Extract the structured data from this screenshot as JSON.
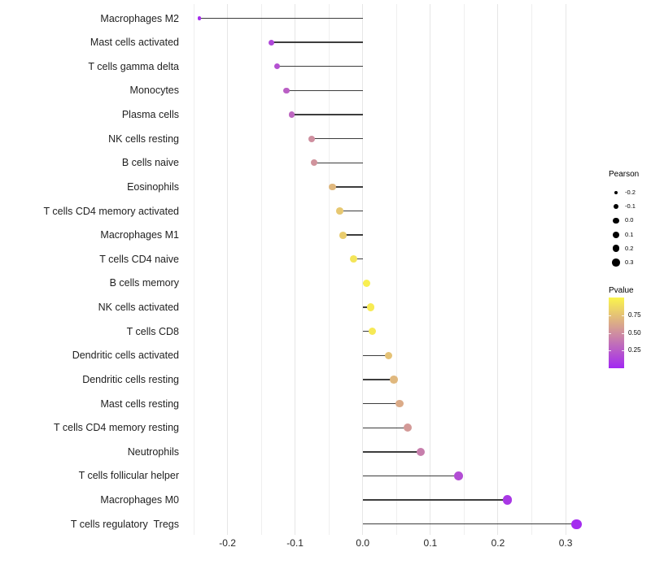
{
  "chart_data": {
    "type": "lollipop",
    "title": "",
    "xlabel": "",
    "ylabel": "",
    "xlim": [
      -0.25,
      0.33
    ],
    "grid_step": 0.05,
    "grid_on": true,
    "x_ticks": [
      -0.2,
      -0.1,
      0.0,
      0.1,
      0.2,
      0.3
    ],
    "x_tick_labels": [
      "-0.2",
      "-0.1",
      "0.0",
      "0.1",
      "0.2",
      "0.3"
    ],
    "rows": [
      {
        "label": "Macrophages M2",
        "pearson": -0.242,
        "pvalue": 0.03
      },
      {
        "label": "Mast cells activated",
        "pearson": -0.135,
        "pvalue": 0.15
      },
      {
        "label": "T cells gamma delta",
        "pearson": -0.127,
        "pvalue": 0.2
      },
      {
        "label": "Monocytes",
        "pearson": -0.113,
        "pvalue": 0.27
      },
      {
        "label": "Plasma cells",
        "pearson": -0.105,
        "pvalue": 0.3
      },
      {
        "label": "NK cells resting",
        "pearson": -0.076,
        "pvalue": 0.5
      },
      {
        "label": "B cells naive",
        "pearson": -0.072,
        "pvalue": 0.52
      },
      {
        "label": "Eosinophils",
        "pearson": -0.045,
        "pvalue": 0.7
      },
      {
        "label": "T cells CD4 memory activated",
        "pearson": -0.034,
        "pvalue": 0.78
      },
      {
        "label": "Macrophages M1",
        "pearson": -0.029,
        "pvalue": 0.8
      },
      {
        "label": "T cells CD4 naive",
        "pearson": -0.014,
        "pvalue": 0.92
      },
      {
        "label": "B cells memory",
        "pearson": 0.006,
        "pvalue": 0.97
      },
      {
        "label": "NK cells activated",
        "pearson": 0.012,
        "pvalue": 0.95
      },
      {
        "label": "T cells CD8",
        "pearson": 0.014,
        "pvalue": 0.94
      },
      {
        "label": "Dendritic cells activated",
        "pearson": 0.038,
        "pvalue": 0.75
      },
      {
        "label": "Dendritic cells resting",
        "pearson": 0.046,
        "pvalue": 0.7
      },
      {
        "label": "Mast cells resting",
        "pearson": 0.054,
        "pvalue": 0.64
      },
      {
        "label": "T cells CD4 memory resting",
        "pearson": 0.067,
        "pvalue": 0.55
      },
      {
        "label": "Neutrophils",
        "pearson": 0.086,
        "pvalue": 0.42
      },
      {
        "label": "T cells follicular helper",
        "pearson": 0.142,
        "pvalue": 0.18
      },
      {
        "label": "Macrophages M0",
        "pearson": 0.214,
        "pvalue": 0.08
      },
      {
        "label": "T cells regulatory  Tregs",
        "pearson": 0.316,
        "pvalue": 0.02
      }
    ],
    "legend_size": {
      "title": "Pearson",
      "values": [
        -0.2,
        -0.1,
        0.0,
        0.1,
        0.2,
        0.3
      ],
      "labels": [
        "-0.2",
        "-0.1",
        "0.0",
        "0.1",
        "0.2",
        "0.3"
      ],
      "position": "right"
    },
    "legend_color": {
      "title": "Pvalue",
      "range": [
        0,
        1
      ],
      "ticks": [
        0.75,
        0.5,
        0.25
      ],
      "tick_labels": [
        "0.75",
        "0.50",
        "0.25"
      ],
      "position": "right"
    },
    "colors": {
      "gradient_low": "#A228F2",
      "gradient_high": "#FBF54C",
      "stem": "#3d3d3d",
      "grid_minor": "#efefef",
      "grid_major": "#e6e6e6",
      "axis_text": "#262626",
      "legend_dot": "#000000"
    }
  }
}
